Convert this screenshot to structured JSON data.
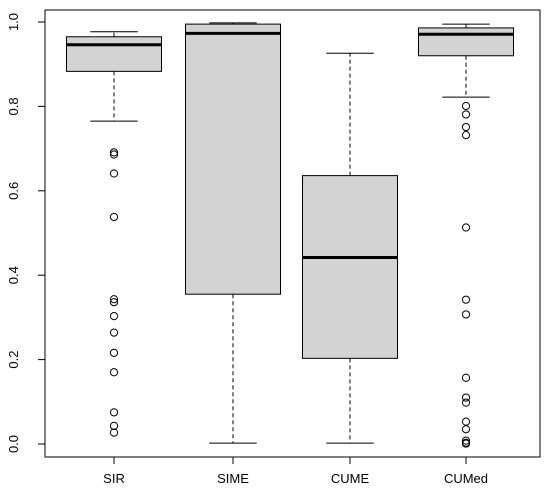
{
  "chart_data": {
    "type": "boxplot",
    "categories": [
      "SIR",
      "SIME",
      "CUME",
      "CUMed"
    ],
    "ylim": [
      0.0,
      1.0
    ],
    "yticks": [
      0.0,
      0.2,
      0.4,
      0.6,
      0.8,
      1.0
    ],
    "ytick_labels": [
      "0.0",
      "0.2",
      "0.4",
      "0.6",
      "0.8",
      "1.0"
    ],
    "title": "",
    "xlabel": "",
    "ylabel": "",
    "box_fill": "#d3d3d3",
    "grid": false,
    "boxes": [
      {
        "name": "SIR",
        "whisker_low": 0.765,
        "q1": 0.883,
        "median": 0.946,
        "q3": 0.965,
        "whisker_high": 0.977,
        "outliers": [
          0.691,
          0.686,
          0.641,
          0.538,
          0.343,
          0.336,
          0.303,
          0.264,
          0.216,
          0.17,
          0.075,
          0.043,
          0.027
        ]
      },
      {
        "name": "SIME",
        "whisker_low": 0.002,
        "q1": 0.355,
        "median": 0.973,
        "q3": 0.995,
        "whisker_high": 0.998,
        "outliers": []
      },
      {
        "name": "CUME",
        "whisker_low": 0.002,
        "q1": 0.203,
        "median": 0.442,
        "q3": 0.636,
        "whisker_high": 0.926,
        "outliers": []
      },
      {
        "name": "CUMed",
        "whisker_low": 0.822,
        "q1": 0.92,
        "median": 0.971,
        "q3": 0.986,
        "whisker_high": 0.995,
        "outliers": [
          0.801,
          0.781,
          0.751,
          0.732,
          0.513,
          0.342,
          0.307,
          0.157,
          0.11,
          0.098,
          0.053,
          0.035,
          0.008,
          0.003,
          0.001
        ]
      }
    ]
  }
}
